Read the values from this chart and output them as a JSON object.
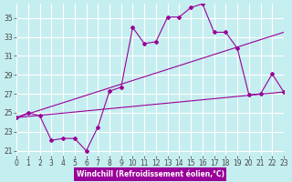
{
  "background_color": "#c5eef0",
  "line_color": "#990099",
  "grid_color": "#ffffff",
  "xlim": [
    0,
    23
  ],
  "ylim": [
    20.5,
    36.5
  ],
  "yticks": [
    21,
    23,
    25,
    27,
    29,
    31,
    33,
    35
  ],
  "xticks": [
    0,
    1,
    2,
    3,
    4,
    5,
    6,
    7,
    8,
    9,
    10,
    11,
    12,
    13,
    14,
    15,
    16,
    17,
    18,
    19,
    20,
    21,
    22,
    23
  ],
  "xlabel": "Windchill (Refroidissement éolien,°C)",
  "jagged_x": [
    0,
    1,
    2,
    3,
    4,
    5,
    6,
    7,
    8,
    9,
    10,
    11,
    12,
    13,
    14,
    15,
    16,
    17,
    18,
    19,
    20,
    21,
    22,
    23
  ],
  "jagged_y": [
    24.5,
    25.0,
    24.7,
    22.1,
    22.3,
    22.3,
    21.0,
    23.5,
    27.3,
    27.7,
    34.0,
    32.3,
    32.5,
    35.1,
    35.1,
    36.1,
    36.5,
    33.5,
    33.5,
    31.8,
    26.9,
    27.0,
    29.1,
    27.2
  ],
  "upper_line_x": [
    0,
    23
  ],
  "upper_line_y": [
    24.5,
    33.5
  ],
  "lower_line_x": [
    0,
    23
  ],
  "lower_line_y": [
    24.5,
    27.2
  ],
  "xlabel_fontsize": 5.5,
  "tick_fontsize": 5.5
}
